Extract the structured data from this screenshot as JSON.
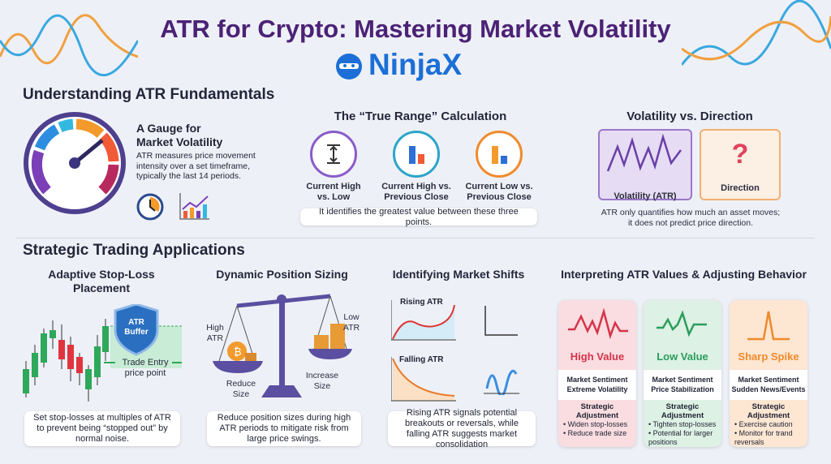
{
  "header": {
    "title": "ATR for Crypto: Mastering Market Volatility",
    "logo": "NinjaX"
  },
  "fundamentals": {
    "heading": "Understanding ATR Fundamentals",
    "gauge": {
      "title_line1": "A Gauge for",
      "title_line2": "Market Volatility",
      "description": "ATR measures price movement intensity over a set timeframe, typically the last 14 periods.",
      "icons": [
        "gauge-icon",
        "clock-icon",
        "bar-chart-trend-icon"
      ]
    },
    "true_range": {
      "title": "The “True Range” Calculation",
      "items": [
        {
          "label": "Current High vs. Low",
          "color": "#8a5cc9"
        },
        {
          "label": "Current High vs. Previous Close",
          "color": "#2aa6c9"
        },
        {
          "label": "Current Low vs. Previous Close",
          "color": "#f08a2c"
        }
      ],
      "note": "It identifies the greatest value between these three points."
    },
    "volatility_direction": {
      "title": "Volatility vs. Direction",
      "volatility_label": "Volatility (ATR)",
      "direction_label": "Direction",
      "direction_symbol": "?",
      "note": "ATR only quantifies how much an asset moves; it does not predict price direction."
    }
  },
  "applications": {
    "heading": "Strategic Trading Applications",
    "stop_loss": {
      "title": "Adaptive Stop-Loss Placement",
      "shield": "ATR Buffer",
      "entry_label": "Trade Entry price point",
      "note": "Set stop-losses at multiples of ATR to prevent being “stopped out” by normal noise."
    },
    "position_sizing": {
      "title": "Dynamic Position Sizing",
      "high": "High ATR",
      "low": "Low ATR",
      "reduce": "Reduce Size",
      "increase": "Increase Size",
      "note": "Reduce position sizes during high ATR periods to mitigate risk from large price swings."
    },
    "market_shifts": {
      "title": "Identifying Market Shifts",
      "rising": "Rising ATR",
      "falling": "Falling ATR",
      "note": "Rising ATR signals potential breakouts or reversals, while falling ATR suggests market consolidation"
    },
    "interpreting": {
      "title": "Interpreting ATR Values & Adjusting Behavior",
      "cards": [
        {
          "title": "High Value",
          "sentiment_label": "Market Sentiment",
          "sentiment": "Extreme Volatility",
          "adjust_label": "Strategic Adjustment",
          "bullets": [
            "• Widen stop-losses",
            "• Reduce trade size"
          ],
          "color": "#d6334a",
          "bg": "#f9dde0"
        },
        {
          "title": "Low Value",
          "sentiment_label": "Market Sentiment",
          "sentiment": "Price Stabilization",
          "adjust_label": "Strategic Adjustment",
          "bullets": [
            "• Tighten stop-losses",
            "• Potential for larger positions"
          ],
          "color": "#2a9d5c",
          "bg": "#ddf1e4"
        },
        {
          "title": "Sharp Spike",
          "sentiment_label": "Market Sentiment",
          "sentiment": "Sudden News/Events",
          "adjust_label": "Strategic Adjustment",
          "bullets": [
            "• Exercise caution",
            "• Monitor for trand reversals"
          ],
          "color": "#ef8a2a",
          "bg": "#fde6d2"
        }
      ]
    }
  }
}
